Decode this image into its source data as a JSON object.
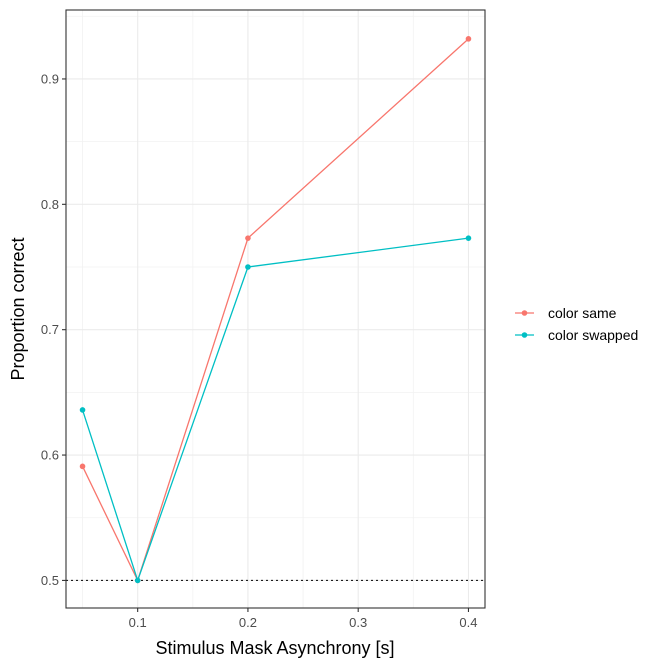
{
  "chart_data": {
    "type": "line",
    "xlabel": "Stimulus Mask Asynchrony [s]",
    "ylabel": "Proportion correct",
    "xlim": [
      0.035,
      0.415
    ],
    "ylim": [
      0.478,
      0.955
    ],
    "x_ticks": [
      0.1,
      0.2,
      0.3,
      0.4
    ],
    "x_tick_labels": [
      "0.1",
      "0.2",
      "0.3",
      "0.4"
    ],
    "y_ticks": [
      0.5,
      0.6,
      0.7,
      0.8,
      0.9
    ],
    "y_tick_labels": [
      "0.5",
      "0.6",
      "0.7",
      "0.8",
      "0.9"
    ],
    "grid": true,
    "legend_position": "right",
    "reference_line": {
      "y": 0.5,
      "style": "dotted"
    },
    "x": [
      0.05,
      0.1,
      0.2,
      0.4
    ],
    "series": [
      {
        "name": "color same",
        "color": "#F8766D",
        "values": [
          0.591,
          0.5,
          0.773,
          0.932
        ]
      },
      {
        "name": "color swapped",
        "color": "#00BFC4",
        "values": [
          0.636,
          0.5,
          0.75,
          0.773
        ]
      }
    ]
  }
}
